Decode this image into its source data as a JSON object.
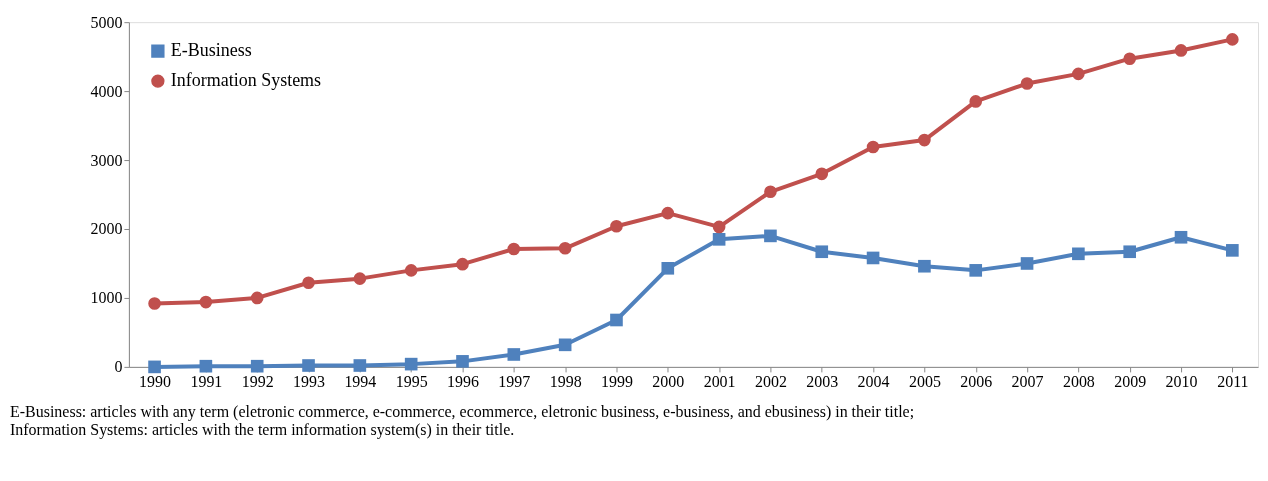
{
  "chart_data": {
    "type": "line",
    "categories": [
      "1990",
      "1991",
      "1992",
      "1993",
      "1994",
      "1995",
      "1996",
      "1997",
      "1998",
      "1999",
      "2000",
      "2001",
      "2002",
      "2003",
      "2004",
      "2005",
      "2006",
      "2007",
      "2008",
      "2009",
      "2010",
      "2011"
    ],
    "series": [
      {
        "name": "E-Business",
        "color": "#4f81bd",
        "marker": "square",
        "values": [
          0,
          10,
          10,
          20,
          20,
          40,
          80,
          180,
          320,
          680,
          1430,
          1850,
          1900,
          1670,
          1580,
          1460,
          1400,
          1500,
          1640,
          1670,
          1880,
          1690
        ]
      },
      {
        "name": "Information Systems",
        "color": "#c0504d",
        "marker": "circle",
        "values": [
          920,
          940,
          1000,
          1220,
          1280,
          1400,
          1490,
          1710,
          1720,
          2040,
          2230,
          2030,
          2540,
          2800,
          3190,
          3290,
          3850,
          4110,
          4250,
          4470,
          4590,
          4750
        ]
      }
    ],
    "ylim": [
      0,
      5000
    ],
    "yticks": [
      0,
      1000,
      2000,
      3000,
      4000,
      5000
    ],
    "grid": false,
    "legend": "top left",
    "line_style": "solid",
    "annotations": [
      "E-Business: articles with any term (eletronic commerce,  e-commerce, ecommerce, eletronic business, e-business, and ebusiness) in their title;",
      "Information Systems: articles with the term information system(s) in their title."
    ]
  }
}
